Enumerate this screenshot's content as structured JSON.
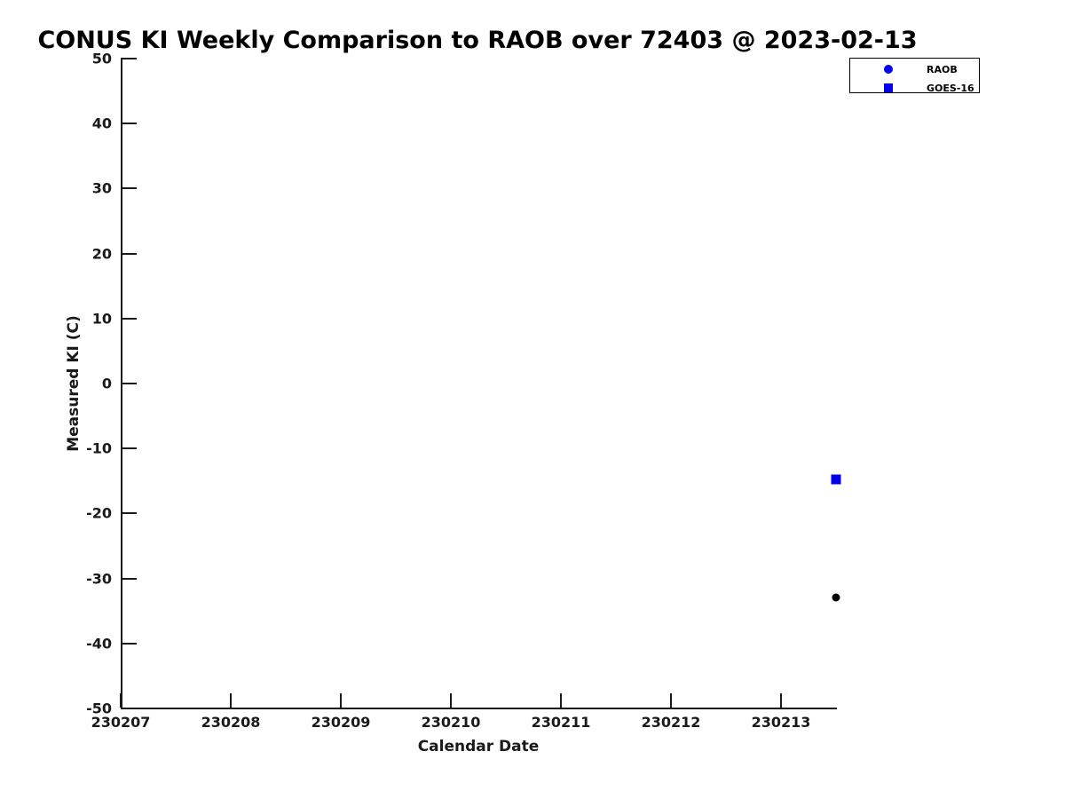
{
  "figure_title": "CONUS KI Weekly Comparison to RAOB over 72403 @ 2023-02-13",
  "chart_data": {
    "type": "scatter",
    "title": "CONUS KI Weekly Comparison to RAOB over 72403 @ 2023-02-13",
    "xlabel": "Calendar Date",
    "ylabel": "Measured KI (C)",
    "x_tick_labels": [
      "230207",
      "230208",
      "230209",
      "230210",
      "230211",
      "230212",
      "230213"
    ],
    "y_tick_values": [
      50,
      40,
      30,
      20,
      10,
      0,
      -10,
      -20,
      -30,
      -40,
      -50
    ],
    "xlim_day_index": [
      0,
      6.5
    ],
    "ylim": [
      -50,
      50
    ],
    "grid": false,
    "legend_position": "top-right",
    "series": [
      {
        "name": "RAOB",
        "marker": "circle",
        "marker_size": 9,
        "point_color": "#000000",
        "legend_color": "#0000ee",
        "points": [
          {
            "x_day_index": 6.5,
            "y": -32.9
          }
        ]
      },
      {
        "name": "GOES-16",
        "marker": "square",
        "marker_size": 11,
        "point_color": "#0000ee",
        "legend_color": "#0000ee",
        "points": [
          {
            "x_day_index": 6.5,
            "y": -14.7
          }
        ]
      }
    ]
  },
  "colors": {
    "accent_blue": "#0000ee",
    "axis_color": "#1a1a1a",
    "background": "#ffffff"
  }
}
